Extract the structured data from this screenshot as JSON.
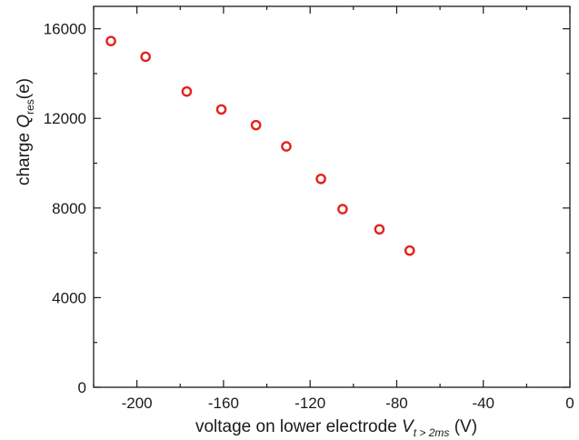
{
  "chart_data": {
    "type": "scatter",
    "xlabel": {
      "text": "voltage on lower electrode ",
      "symbol": "V",
      "subscript": "t > 2ms",
      "unit": " (V)"
    },
    "ylabel": {
      "text": "charge ",
      "symbol": "Q",
      "subscript": "res",
      "unit": "(e)"
    },
    "xlim": [
      -220,
      0
    ],
    "ylim": [
      0,
      17000
    ],
    "x_ticks": [
      -200,
      -160,
      -120,
      -80,
      -40,
      0
    ],
    "x_tick_labels": [
      "-200",
      "-160",
      "-120",
      "-80",
      "-40",
      "0"
    ],
    "y_ticks": [
      0,
      4000,
      8000,
      12000,
      16000
    ],
    "y_tick_labels": [
      "0",
      "4000",
      "8000",
      "12000",
      "16000"
    ],
    "grid": false,
    "marker": "open-circle",
    "marker_color": "#e2231a",
    "series": [
      {
        "x": [
          -212,
          -196,
          -177,
          -161,
          -145,
          -131,
          -115,
          -105,
          -88,
          -74
        ],
        "y": [
          15450,
          14750,
          13200,
          12400,
          11700,
          10750,
          9300,
          7950,
          7050,
          6100
        ]
      }
    ]
  }
}
